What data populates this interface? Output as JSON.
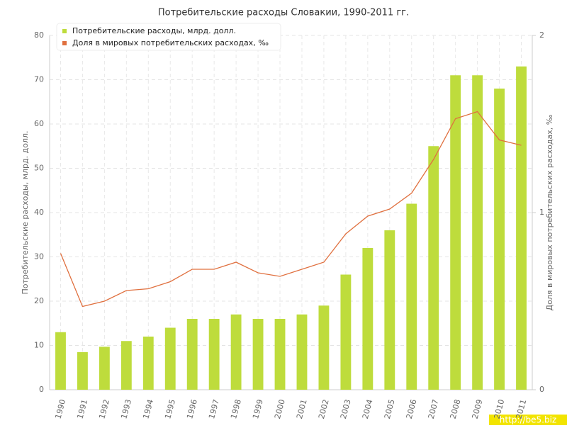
{
  "chart_data": {
    "type": "bar_line",
    "title": "Потребительские расходы Словакии, 1990-2011 гг.",
    "y_label": "Потребительские расходы, млрд. долл.",
    "y2_label": "Доля в мировых потребительских расходах, ‰",
    "categories": [
      "1990",
      "1991",
      "1992",
      "1993",
      "1994",
      "1995",
      "1996",
      "1997",
      "1998",
      "1999",
      "2000",
      "2001",
      "2002",
      "2003",
      "2004",
      "2005",
      "2006",
      "2007",
      "2008",
      "2009",
      "2010",
      "2011"
    ],
    "series": [
      {
        "name": "Потребительские расходы, млрд. долл.",
        "color": "#bedc3c",
        "type": "bar",
        "values": [
          13,
          8.5,
          9.7,
          11,
          12,
          14,
          16,
          16,
          17,
          16,
          16,
          17,
          19,
          26,
          32,
          36,
          42,
          55,
          71,
          71,
          68,
          73
        ]
      },
      {
        "name": "Доля в мировых потребительских расходах, ‰",
        "color": "#e0703f",
        "type": "line",
        "axis": "y2",
        "values": [
          0.77,
          0.47,
          0.5,
          0.56,
          0.57,
          0.61,
          0.68,
          0.68,
          0.72,
          0.66,
          0.64,
          0.68,
          0.72,
          0.88,
          0.98,
          1.02,
          1.11,
          1.3,
          1.53,
          1.57,
          1.41,
          1.38
        ]
      }
    ],
    "ylim": [
      0,
      80
    ],
    "yticks": [
      0,
      10,
      20,
      30,
      40,
      50,
      60,
      70,
      80
    ],
    "y2lim": [
      0,
      2
    ],
    "y2ticks": [
      0,
      1,
      2
    ],
    "grid": true,
    "legend": "top-left",
    "watermark": "http://be5.biz"
  }
}
